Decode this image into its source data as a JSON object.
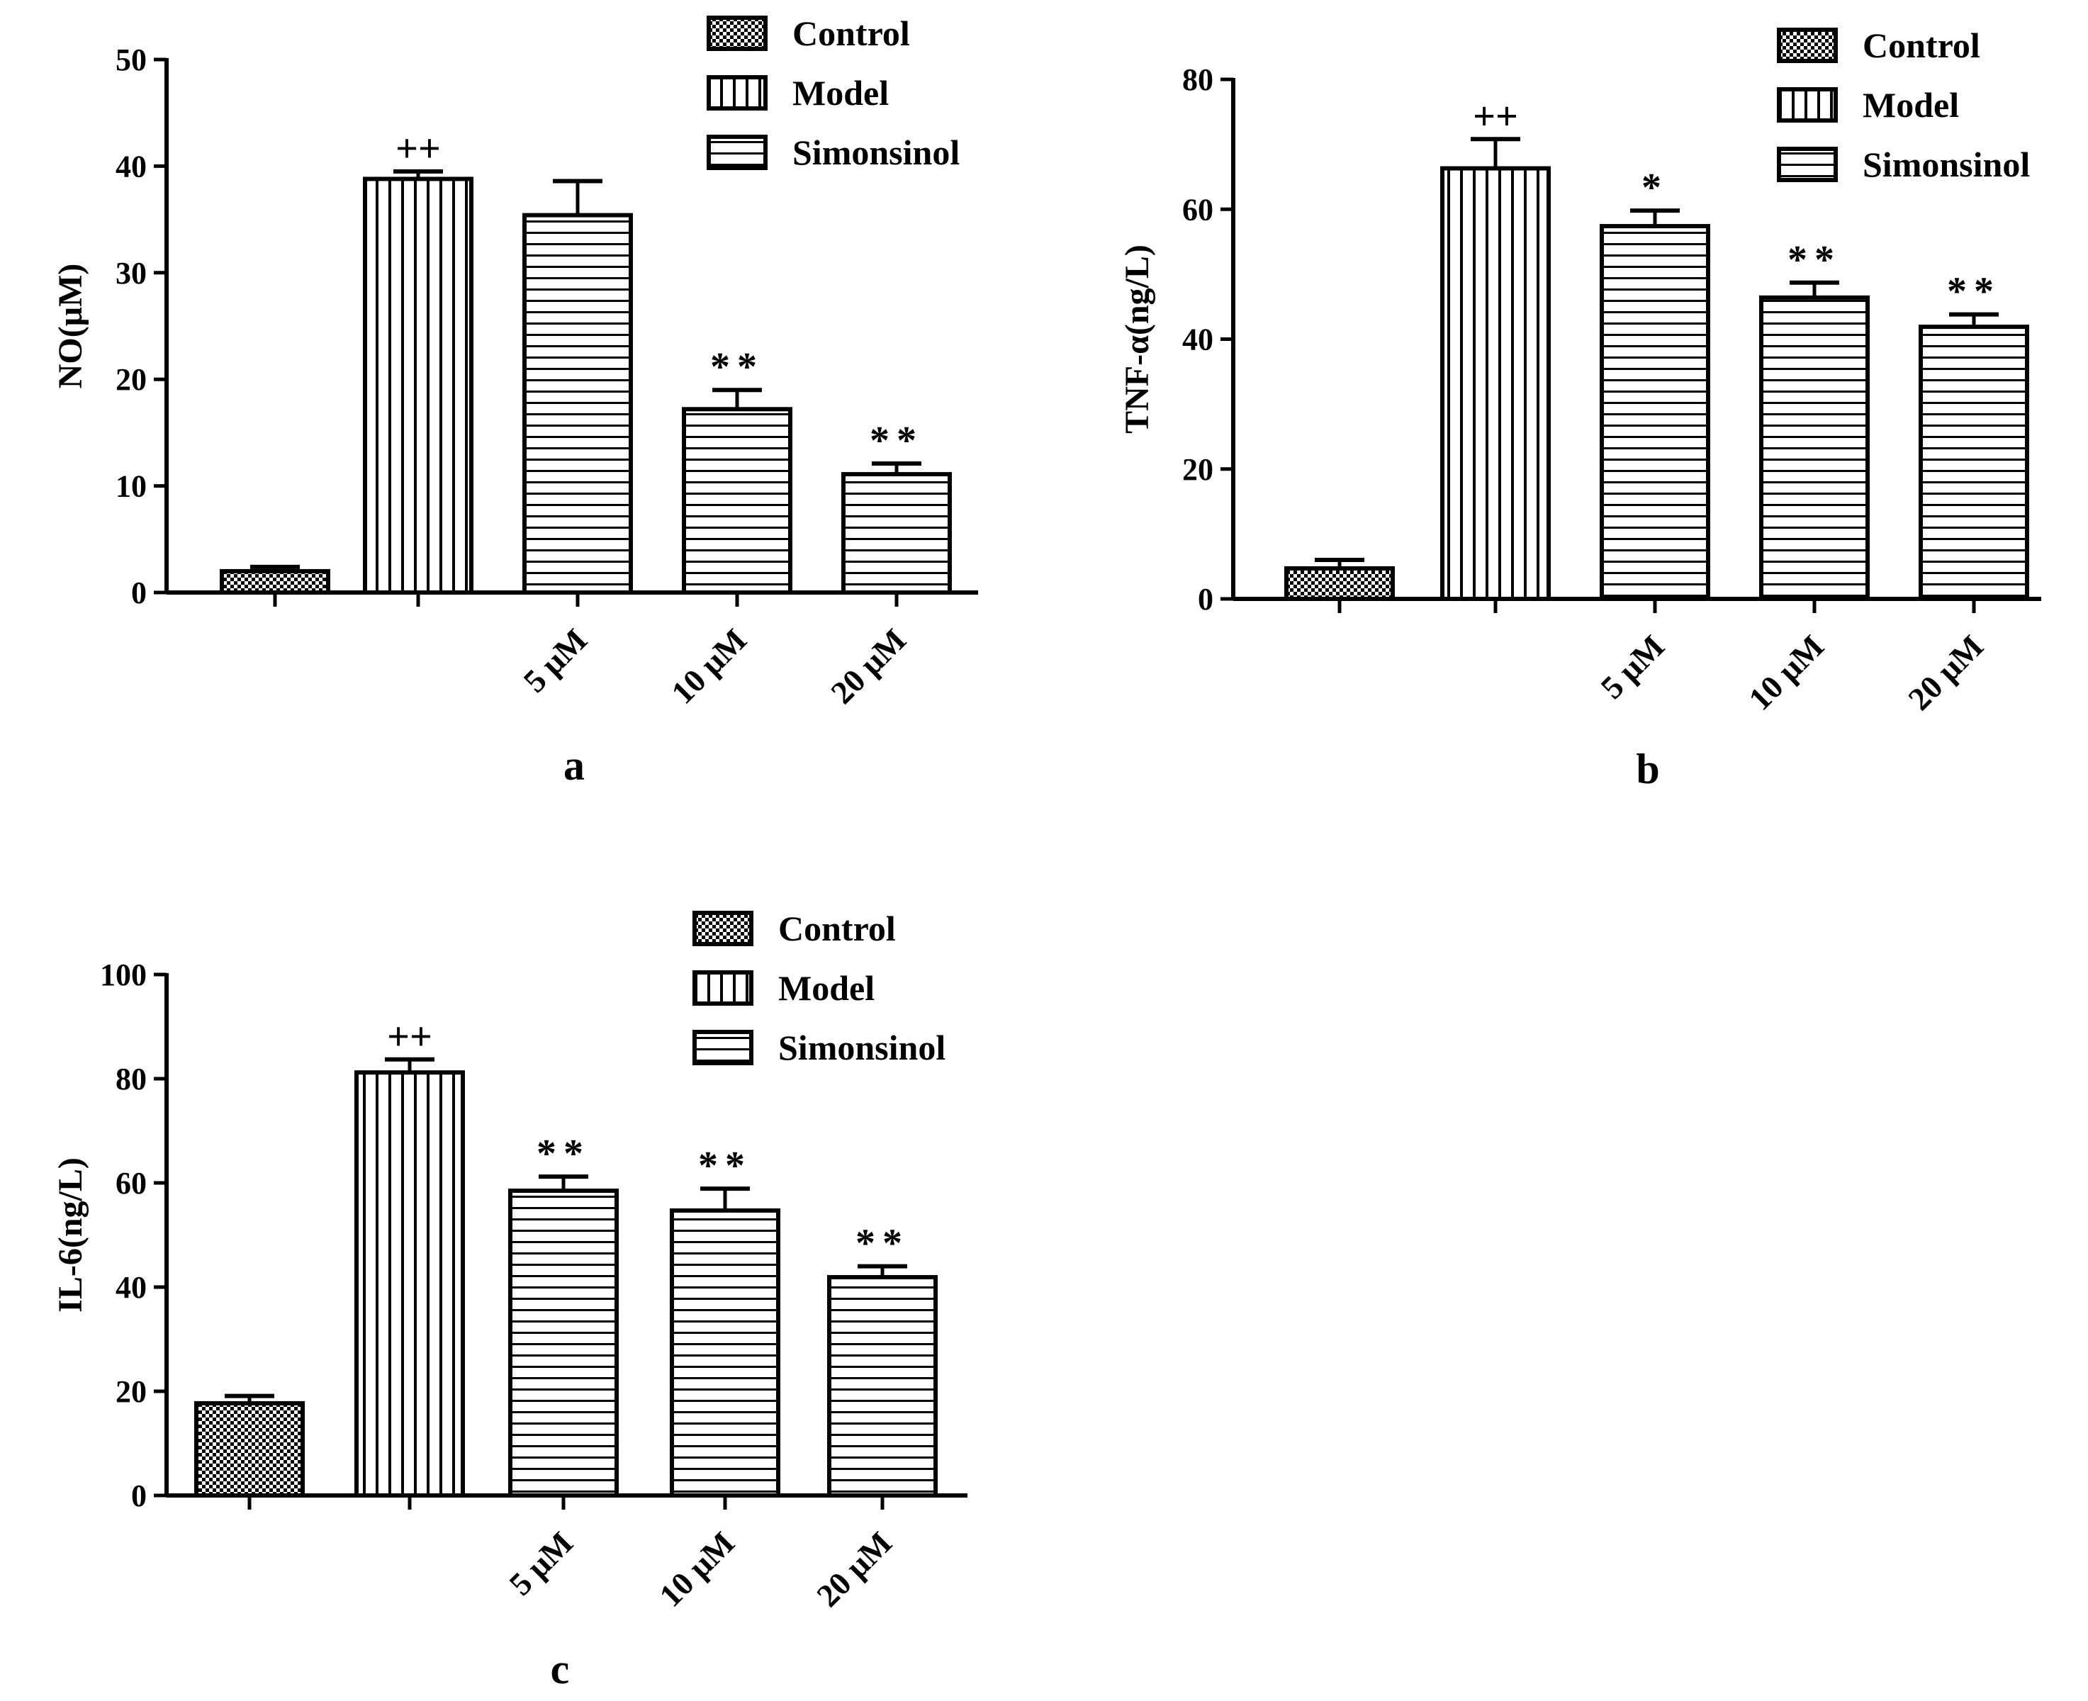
{
  "colors": {
    "ink": "#000000",
    "background": "#ffffff"
  },
  "legend": {
    "entries": [
      {
        "label": "Control",
        "pattern": "checker"
      },
      {
        "label": "Model",
        "pattern": "vertical"
      },
      {
        "label": "Simonsinol",
        "pattern": "horizontal"
      }
    ]
  },
  "chart_data": [
    {
      "id": "a",
      "type": "bar",
      "panel_label": "a",
      "ylabel": "NO(μM)",
      "xlabel": "",
      "ylim": [
        0,
        50
      ],
      "yticks": [
        0,
        10,
        20,
        30,
        40,
        50
      ],
      "categories": [
        "",
        "",
        "5 μM",
        "10 μM",
        "20 μM"
      ],
      "groups": [
        "Control",
        "Model",
        "Simonsinol",
        "Simonsinol",
        "Simonsinol"
      ],
      "values": [
        2,
        38.8,
        35.4,
        17.2,
        11.1
      ],
      "errors": [
        0.4,
        0.7,
        3.2,
        1.8,
        1.0
      ],
      "annotations": [
        "",
        "++",
        "",
        "**",
        "**"
      ]
    },
    {
      "id": "b",
      "type": "bar",
      "panel_label": "b",
      "ylabel": "TNF-α(ng/L)",
      "xlabel": "",
      "ylim": [
        0,
        80
      ],
      "yticks": [
        0,
        20,
        40,
        60,
        80
      ],
      "categories": [
        "",
        "",
        "5 μM",
        "10 μM",
        "20 μM"
      ],
      "groups": [
        "Control",
        "Model",
        "Simonsinol",
        "Simonsinol",
        "Simonsinol"
      ],
      "values": [
        4.7,
        66.3,
        57.4,
        46.4,
        41.9
      ],
      "errors": [
        1.3,
        4.5,
        2.4,
        2.3,
        1.9
      ],
      "annotations": [
        "",
        "++",
        "*",
        "**",
        "**"
      ]
    },
    {
      "id": "c",
      "type": "bar",
      "panel_label": "c",
      "ylabel": "IL-6(ng/L)",
      "xlabel": "",
      "ylim": [
        0,
        100
      ],
      "yticks": [
        0,
        20,
        40,
        60,
        80,
        100
      ],
      "categories": [
        "",
        "",
        "5 μM",
        "10 μM",
        "20 μM"
      ],
      "groups": [
        "Control",
        "Model",
        "Simonsinol",
        "Simonsinol",
        "Simonsinol"
      ],
      "values": [
        17.7,
        81.2,
        58.5,
        54.7,
        41.9
      ],
      "errors": [
        1.4,
        2.5,
        2.7,
        4.2,
        2.1
      ],
      "annotations": [
        "",
        "++",
        "**",
        "**",
        "**"
      ]
    }
  ]
}
